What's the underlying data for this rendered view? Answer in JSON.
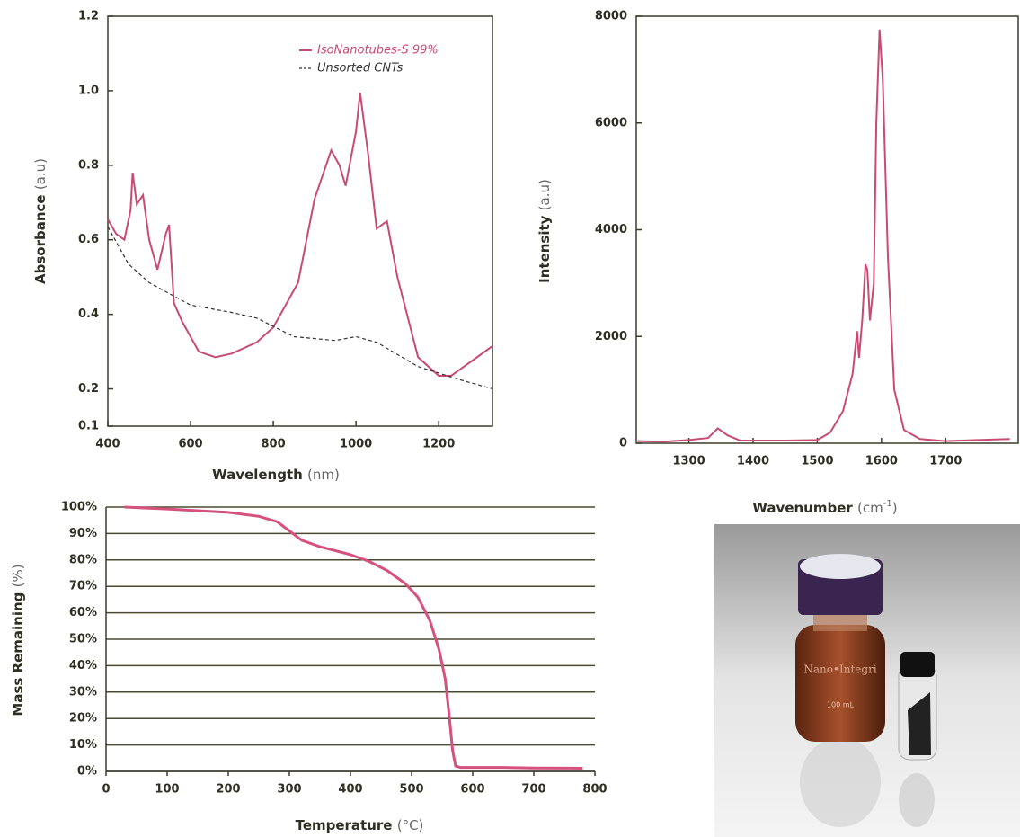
{
  "chart_data": [
    {
      "type": "line",
      "xlabel": "Wavelength",
      "xlabel_unit": "(nm)",
      "ylabel": "Absorbance",
      "ylabel_unit": "(a.u)",
      "xlim": [
        400,
        1330
      ],
      "ylim": [
        0.1,
        1.2
      ],
      "xticks": [
        400,
        600,
        800,
        1000,
        1200
      ],
      "yticks": [
        0.1,
        0.2,
        0.4,
        0.6,
        0.8,
        {
          "value": 1,
          "label": "1.0"
        },
        1.2
      ],
      "legend": "upper right",
      "frame": true,
      "series": [
        {
          "name": "IsoNanotubes-S 99%",
          "color": "#c94a73",
          "dash": false,
          "x": [
            400,
            420,
            440,
            455,
            460,
            470,
            485,
            500,
            520,
            540,
            548,
            560,
            580,
            620,
            660,
            700,
            760,
            800,
            860,
            900,
            940,
            960,
            975,
            1000,
            1010,
            1030,
            1050,
            1075,
            1100,
            1150,
            1200,
            1230,
            1280,
            1330
          ],
          "values": [
            0.655,
            0.616,
            0.6,
            0.68,
            0.78,
            0.695,
            0.72,
            0.6,
            0.52,
            0.615,
            0.64,
            0.43,
            0.38,
            0.3,
            0.285,
            0.295,
            0.325,
            0.365,
            0.485,
            0.71,
            0.84,
            0.8,
            0.745,
            0.89,
            0.995,
            0.825,
            0.63,
            0.65,
            0.5,
            0.285,
            0.235,
            0.235,
            0.275,
            0.315
          ]
        },
        {
          "name": "Unsorted CNTs",
          "color": "#333333",
          "dash": true,
          "x": [
            400,
            450,
            500,
            600,
            700,
            760,
            850,
            950,
            1000,
            1050,
            1150,
            1250,
            1330
          ],
          "values": [
            0.635,
            0.535,
            0.485,
            0.425,
            0.405,
            0.39,
            0.34,
            0.33,
            0.34,
            0.325,
            0.26,
            0.225,
            0.2
          ]
        }
      ]
    },
    {
      "type": "line",
      "xlabel": "Wavenumber",
      "xlabel_unit": [
        "(cm",
        "-1",
        ")"
      ],
      "ylabel": "Intensity",
      "ylabel_unit": "(a.u)",
      "xlim": [
        1218,
        1813
      ],
      "ylim": [
        0,
        8000
      ],
      "xticks": [
        1300,
        1400,
        1500,
        1600,
        1700
      ],
      "yticks": [
        0,
        2000,
        4000,
        6000,
        8000
      ],
      "frame": true,
      "series": [
        {
          "color": "#c94a73",
          "dash": false,
          "x": [
            1220,
            1260,
            1300,
            1330,
            1345,
            1360,
            1380,
            1450,
            1500,
            1520,
            1540,
            1555,
            1562,
            1565,
            1570,
            1575,
            1578,
            1582,
            1588,
            1592,
            1597,
            1602,
            1610,
            1620,
            1635,
            1660,
            1700,
            1750,
            1800
          ],
          "values": [
            40,
            30,
            60,
            100,
            280,
            150,
            50,
            50,
            60,
            200,
            600,
            1300,
            2100,
            1600,
            2300,
            3350,
            3250,
            2300,
            3000,
            6000,
            7750,
            6800,
            3500,
            1000,
            250,
            80,
            40,
            60,
            80
          ]
        }
      ]
    },
    {
      "type": "line",
      "xlabel": "Temperature",
      "xlabel_unit": "(°C)",
      "ylabel": "Mass Remaining",
      "ylabel_unit": "(%)",
      "xlim": [
        0,
        800
      ],
      "ylim": [
        0,
        100
      ],
      "xticks": [
        0,
        100,
        200,
        300,
        400,
        500,
        600,
        700,
        800
      ],
      "yticks": [
        {
          "value": 0,
          "label": "0%"
        },
        {
          "value": 10,
          "label": "10%"
        },
        {
          "value": 20,
          "label": "20%"
        },
        {
          "value": 30,
          "label": "30%"
        },
        {
          "value": 40,
          "label": "40%"
        },
        {
          "value": 50,
          "label": "50%"
        },
        {
          "value": 60,
          "label": "60%"
        },
        {
          "value": 70,
          "label": "70%"
        },
        {
          "value": 80,
          "label": "80%"
        },
        {
          "value": 90,
          "label": "90%"
        },
        {
          "value": 100,
          "label": "100%"
        }
      ],
      "grid": true,
      "frame": false,
      "series": [
        {
          "color": "#d6517d",
          "dash": false,
          "x": [
            30,
            100,
            200,
            250,
            280,
            300,
            320,
            350,
            400,
            430,
            460,
            490,
            510,
            530,
            545,
            555,
            562,
            567,
            572,
            580,
            650,
            700,
            780
          ],
          "values": [
            100,
            99.3,
            98,
            96.5,
            94.5,
            91,
            87.5,
            85,
            82,
            79.5,
            76,
            71,
            66,
            57,
            46,
            35,
            20,
            8,
            2,
            1.5,
            1.5,
            1.3,
            1.2
          ]
        }
      ]
    }
  ],
  "photo": {
    "label_text": "Nano•Integri",
    "volume": "100 mL"
  }
}
